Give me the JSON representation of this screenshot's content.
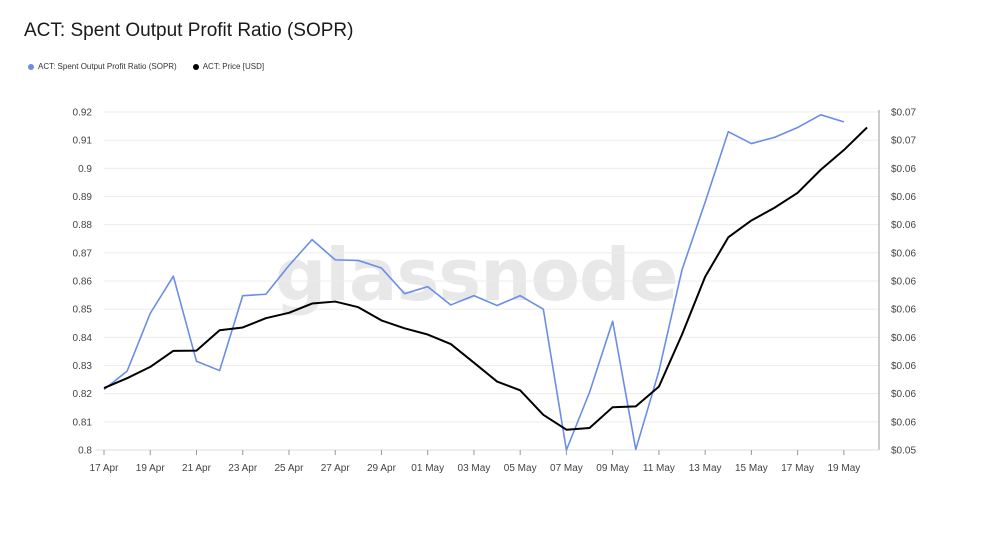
{
  "title": "ACT: Spent Output Profit Ratio (SOPR)",
  "watermark": "glassnode",
  "legend": [
    {
      "label": "ACT: Spent Output Profit Ratio (SOPR)",
      "color": "#6b8de8"
    },
    {
      "label": "ACT: Price [USD]",
      "color": "#000000"
    }
  ],
  "chart_data": {
    "type": "line",
    "x": [
      "17 Apr",
      "18 Apr",
      "19 Apr",
      "20 Apr",
      "21 Apr",
      "22 Apr",
      "23 Apr",
      "24 Apr",
      "25 Apr",
      "26 Apr",
      "27 Apr",
      "28 Apr",
      "29 Apr",
      "30 Apr",
      "01 May",
      "02 May",
      "03 May",
      "04 May",
      "05 May",
      "06 May",
      "07 May",
      "08 May",
      "09 May",
      "10 May",
      "11 May",
      "12 May",
      "13 May",
      "14 May",
      "15 May",
      "16 May",
      "17 May",
      "18 May",
      "19 May",
      "20 May"
    ],
    "x_tick_labels": [
      "17 Apr",
      "19 Apr",
      "21 Apr",
      "23 Apr",
      "25 Apr",
      "27 Apr",
      "29 Apr",
      "01 May",
      "03 May",
      "05 May",
      "07 May",
      "09 May",
      "11 May",
      "13 May",
      "15 May",
      "17 May",
      "19 May"
    ],
    "y_left": {
      "ticks": [
        "0.92",
        "0.91",
        "0.9",
        "0.89",
        "0.88",
        "0.87",
        "0.86",
        "0.85",
        "0.84",
        "0.83",
        "0.82",
        "0.81",
        "0.8"
      ],
      "range": [
        0.8,
        0.92
      ]
    },
    "y_right": {
      "ticks": [
        "$0.07",
        "$0.07",
        "$0.06",
        "$0.06",
        "$0.06",
        "$0.06",
        "$0.06",
        "$0.06",
        "$0.06",
        "$0.06",
        "$0.06",
        "$0.06",
        "$0.05"
      ],
      "range": [
        0.8,
        0.92
      ]
    },
    "series": [
      {
        "name": "ACT: Spent Output Profit Ratio (SOPR)",
        "color": "#6b8de8",
        "axis": "left",
        "values": [
          0.8215,
          0.828,
          0.8485,
          0.8617,
          0.8315,
          0.8282,
          0.8548,
          0.8553,
          0.8655,
          0.8747,
          0.8675,
          0.8673,
          0.8646,
          0.8555,
          0.858,
          0.8515,
          0.8548,
          0.8513,
          0.8548,
          0.85,
          0.8,
          0.8205,
          0.8457,
          0.8002,
          0.828,
          0.864,
          0.888,
          0.913,
          0.9088,
          0.911,
          0.9145,
          0.919,
          0.9165,
          null
        ]
      },
      {
        "name": "ACT: Price [USD]",
        "color": "#000000",
        "axis": "right",
        "values": [
          0.822,
          0.8255,
          0.8295,
          0.8352,
          0.8353,
          0.8425,
          0.8435,
          0.8468,
          0.8487,
          0.852,
          0.8527,
          0.8507,
          0.846,
          0.8432,
          0.841,
          0.8376,
          0.831,
          0.8243,
          0.8212,
          0.8125,
          0.8072,
          0.8078,
          0.8152,
          0.8155,
          0.8225,
          0.841,
          0.8615,
          0.8755,
          0.8815,
          0.886,
          0.8913,
          0.8995,
          0.9065,
          0.9145
        ]
      }
    ]
  }
}
